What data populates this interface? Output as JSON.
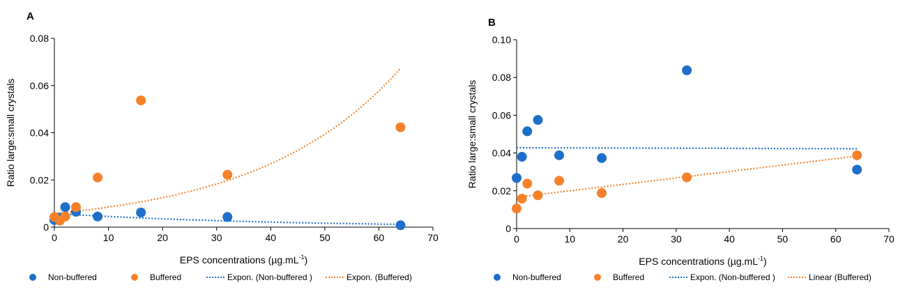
{
  "colors": {
    "non_buffered": "#1f6fc9",
    "buffered": "#f5822a"
  },
  "chart_data": [
    {
      "panel_label": "A",
      "type": "scatter",
      "xlabel": "EPS concentrations (µg.mL",
      "xlabel_sup": "-1",
      "xlabel_end": ")",
      "ylabel": "Ratio large:small crystals",
      "xlim": [
        0,
        70
      ],
      "ylim": [
        0,
        0.08
      ],
      "x_ticks": [
        "0",
        "10",
        "20",
        "30",
        "40",
        "50",
        "60",
        "70"
      ],
      "y_ticks": [
        "0",
        "0.02",
        "0.04",
        "0.06",
        "0.08"
      ],
      "grid": false,
      "legend_position": "bottom",
      "series": [
        {
          "name": "Non-buffered",
          "marker": "circle",
          "color_key": "non_buffered",
          "points": [
            [
              0,
              0.003
            ],
            [
              1,
              0.004
            ],
            [
              2,
              0.0085
            ],
            [
              4,
              0.0065
            ],
            [
              8,
              0.0045
            ],
            [
              16,
              0.0062
            ],
            [
              32,
              0.0043
            ],
            [
              64,
              0.0008
            ]
          ]
        },
        {
          "name": "Buffered",
          "marker": "circle",
          "color_key": "buffered",
          "points": [
            [
              0,
              0.0043
            ],
            [
              1,
              0.0028
            ],
            [
              2,
              0.0045
            ],
            [
              4,
              0.0085
            ],
            [
              8,
              0.021
            ],
            [
              16,
              0.0537
            ],
            [
              32,
              0.0222
            ],
            [
              64,
              0.0423
            ]
          ]
        }
      ],
      "trendlines": [
        {
          "name": "Expon. (Non-buffered )",
          "kind": "exponential",
          "color_key": "non_buffered",
          "a": 0.0058,
          "b": -0.0249,
          "x_range": [
            0,
            64
          ]
        },
        {
          "name": "Expon. (Buffered)",
          "kind": "exponential",
          "color_key": "buffered",
          "a": 0.0058,
          "b": 0.0383,
          "x_range": [
            0,
            64
          ]
        }
      ]
    },
    {
      "panel_label": "B",
      "type": "scatter",
      "xlabel": "EPS concentrations (µg.mL",
      "xlabel_sup": "-1",
      "xlabel_end": ")",
      "ylabel": "Ratio large:small crystals",
      "xlim": [
        0,
        70
      ],
      "ylim": [
        0,
        0.1
      ],
      "x_ticks": [
        "0",
        "10",
        "20",
        "30",
        "40",
        "50",
        "60",
        "70"
      ],
      "y_ticks": [
        "0",
        "0.02",
        "0.04",
        "0.06",
        "0.08",
        "0.10"
      ],
      "grid": false,
      "legend_position": "bottom",
      "series": [
        {
          "name": "Non-buffered",
          "marker": "circle",
          "color_key": "non_buffered",
          "points": [
            [
              0,
              0.0268
            ],
            [
              1,
              0.038
            ],
            [
              2,
              0.0515
            ],
            [
              4,
              0.0575
            ],
            [
              8,
              0.0388
            ],
            [
              16,
              0.0373
            ],
            [
              32,
              0.0838
            ],
            [
              64,
              0.0312
            ]
          ]
        },
        {
          "name": "Buffered",
          "marker": "circle",
          "color_key": "buffered",
          "points": [
            [
              0,
              0.0106
            ],
            [
              1,
              0.0158
            ],
            [
              2,
              0.0238
            ],
            [
              4,
              0.0176
            ],
            [
              8,
              0.0253
            ],
            [
              16,
              0.0188
            ],
            [
              32,
              0.0271
            ],
            [
              64,
              0.0388
            ]
          ]
        }
      ],
      "trendlines": [
        {
          "name": "Expon. (Non-buffered )",
          "kind": "exponential",
          "color_key": "non_buffered",
          "a": 0.0428,
          "b": -0.0002,
          "x_range": [
            0,
            64
          ]
        },
        {
          "name": "Linear (Buffered)",
          "kind": "linear",
          "color_key": "buffered",
          "slope": 0.00034,
          "intercept": 0.0166,
          "x_range": [
            0,
            64
          ]
        }
      ]
    }
  ]
}
